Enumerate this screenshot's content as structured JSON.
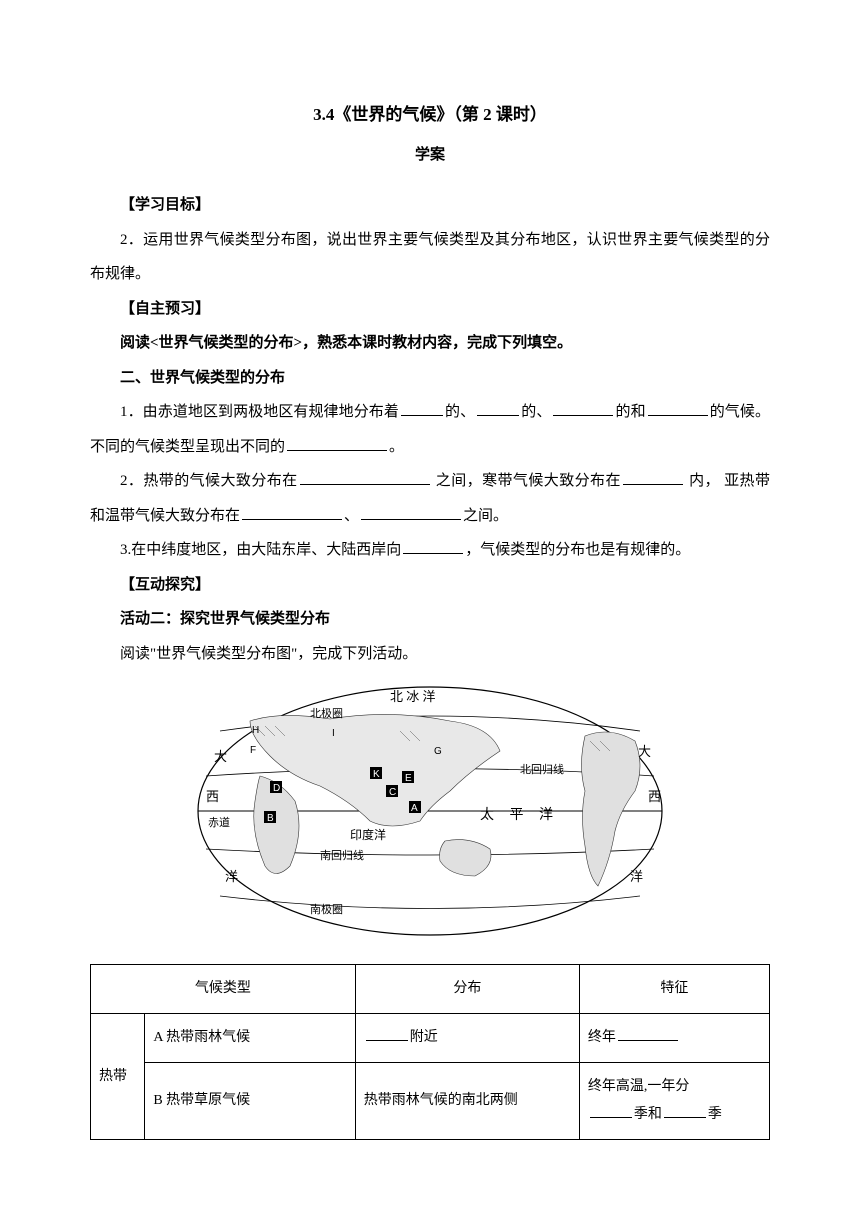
{
  "title": "3.4《世界的气候》（第 2 课时）",
  "subtitle": "学案",
  "sec_goal_head": "【学习目标】",
  "goal_text": "2．运用世界气候类型分布图，说出世界主要气候类型及其分布地区，认识世界主要气候类型的分布规律。",
  "sec_preview_head": "【自主预习】",
  "preview_instruction": "阅读<世界气候类型的分布>，熟悉本课时教材内容，完成下列填空。",
  "sec2_head": "二、世界气候类型的分布",
  "p1_a": "1．由赤道地区到两极地区有规律地分布着",
  "p1_b": "的、",
  "p1_c": "的、",
  "p1_d": "的和",
  "p1_e": "的气候。不同的气候类型呈现出不同的",
  "p1_f": "。",
  "p2_a": "2．热带的气候大致分布在",
  "p2_b": " 之间，寒带气候大致分布在",
  "p2_c": " 内，  亚热带和温带气候大致分布在",
  "p2_d": "、",
  "p2_e": "之间。",
  "p3_a": "3.在中纬度地区，由大陆东岸、大陆西岸向",
  "p3_b": "，气候类型的分布也是有规律的。",
  "sec_explore_head": "【互动探究】",
  "activity2_head": "活动二：探究世界气候类型分布",
  "activity2_text": "阅读\"世界气候类型分布图\"，完成下列活动。",
  "map_labels": {
    "arctic": "北 冰 洋",
    "arctic_circle": "北极圈",
    "tropic_cancer": "北回归线",
    "equator": "赤道",
    "tropic_capricorn": "南回归线",
    "antarctic_circle": "南极圈",
    "pacific": "太  平  洋",
    "indian": "印度洋",
    "atlantic_w": "大",
    "atlantic_w2": "西",
    "atlantic_w3": "洋",
    "atlantic_e": "大",
    "atlantic_e2": "西",
    "atlantic_e3": "洋"
  },
  "table": {
    "h1": "气候类型",
    "h2": "分布",
    "h3": "特征",
    "zone_tropical": "热带",
    "rowA_type": "A 热带雨林气候",
    "rowA_dist_suffix": "附近",
    "rowA_feat_prefix": "终年",
    "rowB_type": "B 热带草原气候",
    "rowB_dist": "热带雨林气候的南北两侧",
    "rowB_feat_a": "终年高温,一年分",
    "rowB_feat_b": "季和",
    "rowB_feat_c": "季"
  },
  "blank_widths": {
    "short": 42,
    "med": 60,
    "long": 100,
    "xlong": 130,
    "cell_short": 42,
    "cell_med": 60
  }
}
